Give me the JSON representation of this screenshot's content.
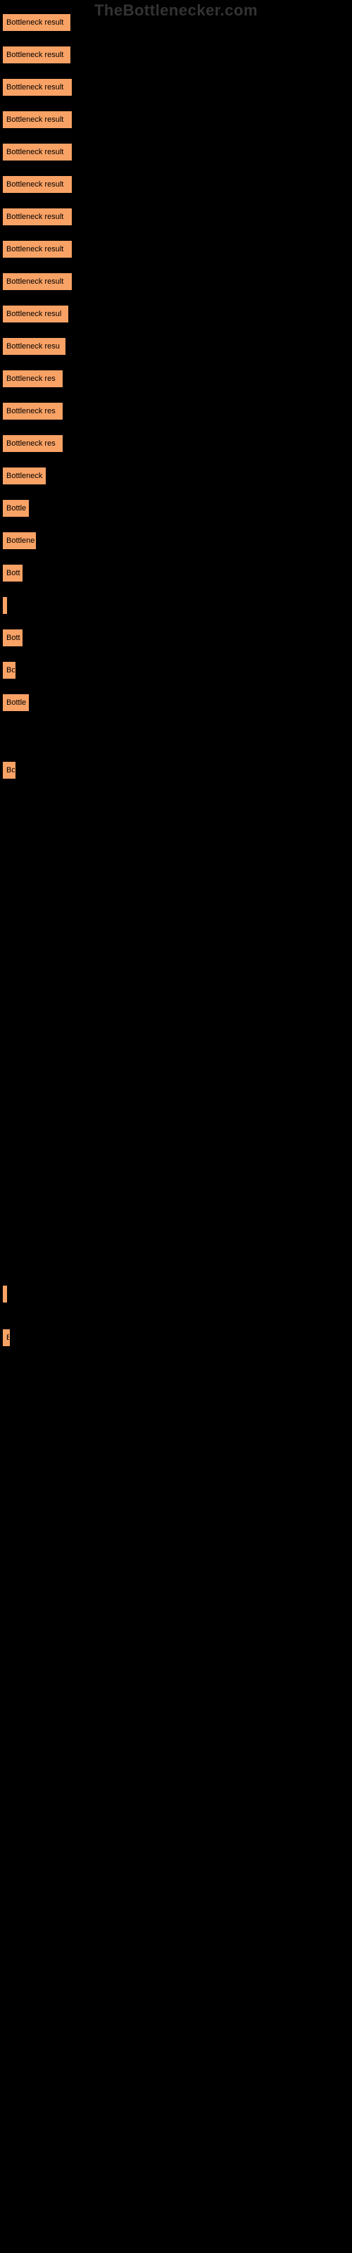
{
  "watermark": "TheBottlenecker.com",
  "bars": [
    {
      "label": "Bottleneck result",
      "width": 96
    },
    {
      "label": "Bottleneck result",
      "width": 96
    },
    {
      "label": "Bottleneck result",
      "width": 98
    },
    {
      "label": "Bottleneck result",
      "width": 98
    },
    {
      "label": "Bottleneck result",
      "width": 98
    },
    {
      "label": "Bottleneck result",
      "width": 98
    },
    {
      "label": "Bottleneck result",
      "width": 98
    },
    {
      "label": "Bottleneck result",
      "width": 98
    },
    {
      "label": "Bottleneck result",
      "width": 98
    },
    {
      "label": "Bottleneck resul",
      "width": 93
    },
    {
      "label": "Bottleneck resu",
      "width": 89
    },
    {
      "label": "Bottleneck res",
      "width": 85
    },
    {
      "label": "Bottleneck res",
      "width": 85
    },
    {
      "label": "Bottleneck res",
      "width": 85
    },
    {
      "label": "Bottleneck",
      "width": 61
    },
    {
      "label": "Bottle",
      "width": 37
    },
    {
      "label": "Bottlene",
      "width": 47
    },
    {
      "label": "Bott",
      "width": 28
    },
    {
      "label": "",
      "width": 3
    },
    {
      "label": "Bott",
      "width": 28
    },
    {
      "label": "Bo",
      "width": 18
    },
    {
      "label": "Bottle",
      "width": 37
    }
  ],
  "spacer_bars": [
    {
      "label": "Bo",
      "width": 18,
      "margin_top": 72
    }
  ],
  "bottom_bars": [
    {
      "label": "",
      "width": 4,
      "margin_top": 720
    },
    {
      "label": "B",
      "width": 10,
      "margin_top": 38
    }
  ],
  "colors": {
    "background": "#000000",
    "bar_fill": "#f9a265",
    "bar_text": "#000000",
    "watermark": "#333333"
  }
}
